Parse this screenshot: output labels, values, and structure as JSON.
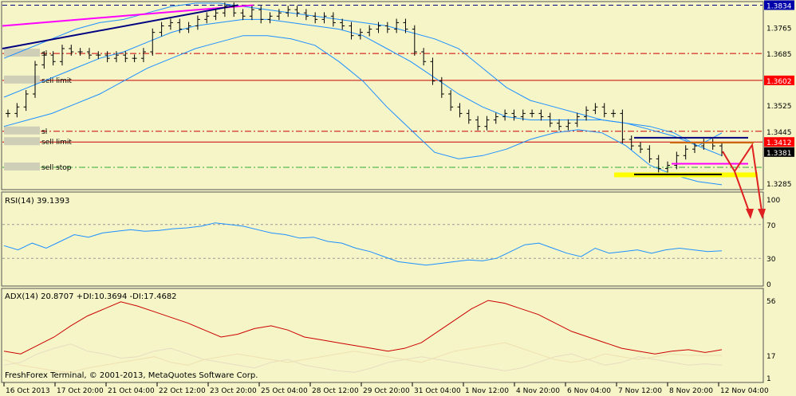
{
  "window": {
    "footer": "FreshForex Terminal, © 2001-2013, MetaQuotes Software Corp."
  },
  "colors": {
    "background": "#f5f5c8",
    "bars": "#000000",
    "bollinger": "#1e90ff",
    "rsi": "#1e90ff",
    "adx": "#cc0000",
    "level_red": "#cc0000",
    "level_green": "#33aa33",
    "trend_magenta": "#ff00ff",
    "trend_navy": "#000080",
    "yellow_box": "#ffff00"
  },
  "chart_data": [
    {
      "type": "candlestick",
      "panel": "price",
      "instrument_hidden": true,
      "x_tick_labels": [
        "16 Oct 2013",
        "17 Oct 20:00",
        "21 Oct 04:00",
        "22 Oct 12:00",
        "23 Oct 20:00",
        "25 Oct 04:00",
        "28 Oct 12:00",
        "29 Oct 20:00",
        "31 Oct 04:00",
        "1 Nov 12:00",
        "4 Nov 20:00",
        "6 Nov 04:00",
        "7 Nov 12:00",
        "8 Nov 20:00",
        "12 Nov 04:00"
      ],
      "y_tick_labels": [
        "1.3834",
        "1.3765",
        "1.3685",
        "1.3602",
        "1.3525",
        "1.3445",
        "1.3412",
        "1.3381",
        "1.3285"
      ],
      "ylim": [
        1.327,
        1.384
      ],
      "current_price": 1.3381,
      "price_levels": [
        {
          "label": "1.3834",
          "value": 1.3834,
          "color": "#000080",
          "style": "dash",
          "highlight": "#0000aa"
        },
        {
          "label": "",
          "value": 1.3685,
          "color": "#cc0000",
          "style": "dashdot"
        },
        {
          "label": "1.3602",
          "value": 1.3602,
          "color": "#cc0000",
          "style": "solid",
          "highlight": "#ff0000"
        },
        {
          "label": "",
          "value": 1.3445,
          "color": "#cc0000",
          "style": "dashdot"
        },
        {
          "label": "1.3412",
          "value": 1.3412,
          "color": "#cc0000",
          "style": "solid",
          "highlight": "#ff0000"
        },
        {
          "label": "",
          "value": 1.3334,
          "color": "#33aa33",
          "style": "dashdot"
        }
      ],
      "order_labels": [
        {
          "text": "sl",
          "value": 1.3685
        },
        {
          "text": "sell limit",
          "value": 1.3602
        },
        {
          "text": "sl",
          "value": 1.3445
        },
        {
          "text": "sell limit",
          "value": 1.3412
        },
        {
          "text": "sell stop",
          "value": 1.3334
        }
      ],
      "candles_close": [
        1.35,
        1.352,
        1.356,
        1.365,
        1.368,
        1.366,
        1.37,
        1.369,
        1.369,
        1.368,
        1.368,
        1.367,
        1.368,
        1.367,
        1.367,
        1.369,
        1.375,
        1.377,
        1.378,
        1.376,
        1.377,
        1.379,
        1.38,
        1.381,
        1.383,
        1.381,
        1.38,
        1.382,
        1.379,
        1.38,
        1.381,
        1.382,
        1.381,
        1.38,
        1.379,
        1.38,
        1.378,
        1.377,
        1.374,
        1.375,
        1.376,
        1.377,
        1.376,
        1.378,
        1.376,
        1.369,
        1.366,
        1.36,
        1.356,
        1.352,
        1.35,
        1.348,
        1.346,
        1.348,
        1.349,
        1.35,
        1.349,
        1.35,
        1.35,
        1.349,
        1.347,
        1.346,
        1.347,
        1.349,
        1.351,
        1.352,
        1.35,
        1.35,
        1.342,
        1.34,
        1.339,
        1.336,
        1.333,
        1.334,
        1.337,
        1.339,
        1.34,
        1.341,
        1.34,
        1.338
      ],
      "bb_upper": [
        1.367,
        1.37,
        1.373,
        1.376,
        1.378,
        1.379,
        1.381,
        1.383,
        1.384,
        1.384,
        1.383,
        1.382,
        1.381,
        1.38,
        1.379,
        1.378,
        1.377,
        1.375,
        1.373,
        1.37,
        1.364,
        1.358,
        1.354,
        1.352,
        1.35,
        1.348,
        1.347,
        1.345,
        1.343,
        1.34,
        1.344
      ],
      "bb_middle": [
        1.355,
        1.358,
        1.361,
        1.364,
        1.367,
        1.369,
        1.372,
        1.375,
        1.377,
        1.378,
        1.379,
        1.379,
        1.378,
        1.377,
        1.376,
        1.374,
        1.37,
        1.366,
        1.361,
        1.356,
        1.352,
        1.349,
        1.348,
        1.348,
        1.348,
        1.348,
        1.347,
        1.346,
        1.344,
        1.34,
        1.337
      ],
      "bb_lower": [
        1.346,
        1.348,
        1.35,
        1.353,
        1.356,
        1.36,
        1.364,
        1.367,
        1.37,
        1.372,
        1.374,
        1.374,
        1.373,
        1.371,
        1.366,
        1.36,
        1.352,
        1.345,
        1.338,
        1.336,
        1.337,
        1.339,
        1.342,
        1.344,
        1.345,
        1.344,
        1.34,
        1.334,
        1.331,
        1.329,
        1.328
      ],
      "trendlines": [
        {
          "color": "#ff00ff",
          "from": [
            0,
            1.377
          ],
          "to": [
            0.33,
            1.3834
          ]
        },
        {
          "color": "#000080",
          "from": [
            0,
            1.37
          ],
          "to": [
            0.31,
            1.3834
          ]
        }
      ]
    },
    {
      "type": "line",
      "panel": "indicator",
      "title": "RSI(14) 39.1393",
      "y_tick_labels": [
        "100",
        "70",
        "30",
        "0"
      ],
      "ylim": [
        0,
        100
      ],
      "levels": [
        70,
        30
      ],
      "series": [
        {
          "values": [
            45,
            40,
            48,
            42,
            50,
            58,
            55,
            60,
            62,
            64,
            62,
            63,
            65,
            66,
            68,
            72,
            70,
            68,
            64,
            60,
            58,
            54,
            55,
            50,
            48,
            42,
            38,
            32,
            26,
            24,
            22,
            24,
            26,
            28,
            27,
            30,
            38,
            46,
            48,
            42,
            36,
            32,
            42,
            36,
            38,
            40,
            36,
            40,
            42,
            40,
            38,
            39
          ]
        }
      ]
    },
    {
      "type": "line",
      "panel": "indicator",
      "title": "ADX(14) 20.8707 +DI:10.3694 -DI:17.4682",
      "y_tick_labels": [
        "56",
        "17",
        "1"
      ],
      "ylim": [
        0,
        60
      ],
      "series": [
        {
          "values": [
            20,
            18,
            24,
            30,
            38,
            45,
            50,
            55,
            52,
            48,
            44,
            40,
            35,
            30,
            32,
            36,
            38,
            35,
            30,
            28,
            26,
            24,
            22,
            20,
            22,
            26,
            34,
            42,
            50,
            56,
            54,
            50,
            46,
            40,
            34,
            30,
            26,
            22,
            20,
            18,
            20,
            21,
            19,
            21
          ]
        },
        {
          "values": [
            10,
            12,
            18,
            22,
            25,
            20,
            18,
            15,
            16,
            20,
            22,
            18,
            14,
            12,
            10,
            8,
            12,
            14,
            10,
            8,
            6,
            5,
            8,
            12,
            14,
            16,
            14,
            12,
            10,
            8,
            6,
            8,
            12,
            16,
            18,
            14,
            10,
            12,
            16,
            14,
            12,
            10,
            11,
            10
          ]
        },
        {
          "values": [
            14,
            10,
            8,
            6,
            5,
            8,
            10,
            12,
            14,
            16,
            12,
            10,
            14,
            16,
            18,
            16,
            14,
            12,
            14,
            16,
            18,
            20,
            18,
            16,
            14,
            12,
            16,
            20,
            22,
            24,
            26,
            22,
            18,
            14,
            12,
            14,
            18,
            16,
            14,
            16,
            18,
            17,
            17,
            17
          ]
        }
      ]
    }
  ]
}
